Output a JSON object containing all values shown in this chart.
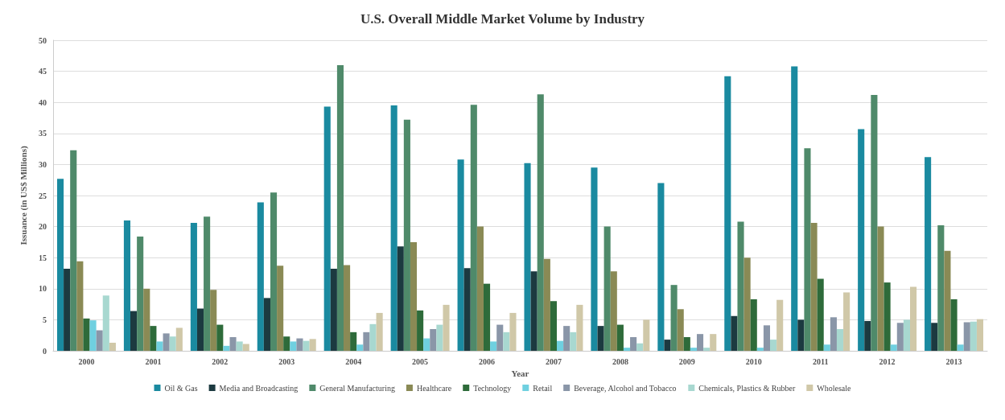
{
  "chart_data": {
    "type": "bar",
    "title": "U.S. Overall Middle Market Volume by Industry",
    "xlabel": "Year",
    "ylabel": "Issuance (in US$ Millions)",
    "categories": [
      "2000",
      "2001",
      "2002",
      "2003",
      "2004",
      "2005",
      "2006",
      "2007",
      "2008",
      "2009",
      "2010",
      "2011",
      "2012",
      "2013"
    ],
    "series": [
      {
        "name": "Oil & Gas",
        "color": "#1a8aa0",
        "values": [
          27.7,
          21,
          20.6,
          23.9,
          39.3,
          39.5,
          30.8,
          30.2,
          29.5,
          27,
          44.2,
          45.8,
          35.7,
          31.2
        ]
      },
      {
        "name": "Media and Broadcasting",
        "color": "#1c3a40",
        "values": [
          13.2,
          6.4,
          6.8,
          8.5,
          13.2,
          16.8,
          13.3,
          12.8,
          4,
          1.8,
          5.6,
          5,
          4.8,
          4.5
        ]
      },
      {
        "name": "General Manufacturing",
        "color": "#4f8a6a",
        "values": [
          32.3,
          18.4,
          21.6,
          25.5,
          46,
          37.2,
          39.6,
          41.3,
          20,
          10.6,
          20.8,
          32.6,
          41.2,
          20.2
        ]
      },
      {
        "name": "Healthcare",
        "color": "#8a8a55",
        "values": [
          14.4,
          10,
          9.8,
          13.7,
          13.8,
          17.5,
          20,
          14.8,
          12.8,
          6.7,
          15,
          20.6,
          20,
          16.1
        ]
      },
      {
        "name": "Technology",
        "color": "#2e6b3a",
        "values": [
          5.2,
          4,
          4.2,
          2.3,
          3,
          6.5,
          10.8,
          8,
          4.2,
          2.2,
          8.3,
          11.6,
          11,
          8.3
        ]
      },
      {
        "name": "Retail",
        "color": "#6fd0e0",
        "values": [
          4.9,
          1.5,
          0.8,
          1.5,
          1,
          2,
          1.5,
          1.6,
          0.5,
          0.5,
          0.5,
          1,
          1,
          1
        ]
      },
      {
        "name": "Beverage, Alcohol and Tobacco",
        "color": "#8a96a8",
        "values": [
          3.3,
          2.8,
          2.2,
          2,
          3,
          3.5,
          4.2,
          4,
          2.2,
          2.7,
          4.1,
          5.4,
          4.5,
          4.6
        ]
      },
      {
        "name": "Chemicals, Plastics & Rubber",
        "color": "#a8d8d0",
        "values": [
          8.9,
          2.3,
          1.5,
          1.6,
          4.3,
          4.2,
          3,
          3,
          1.2,
          0.5,
          1.8,
          3.5,
          5,
          4.7
        ]
      },
      {
        "name": "Wholesale",
        "color": "#d0c8a8",
        "values": [
          1.3,
          3.7,
          1.1,
          1.9,
          6.1,
          7.4,
          6.1,
          7.4,
          5,
          2.7,
          8.2,
          9.4,
          10.3,
          5.1
        ]
      }
    ],
    "ylim": [
      0,
      50
    ],
    "yticks": [
      0,
      5,
      10,
      15,
      20,
      25,
      30,
      35,
      40,
      45,
      50
    ],
    "grid": "y",
    "legend": "bottom"
  }
}
